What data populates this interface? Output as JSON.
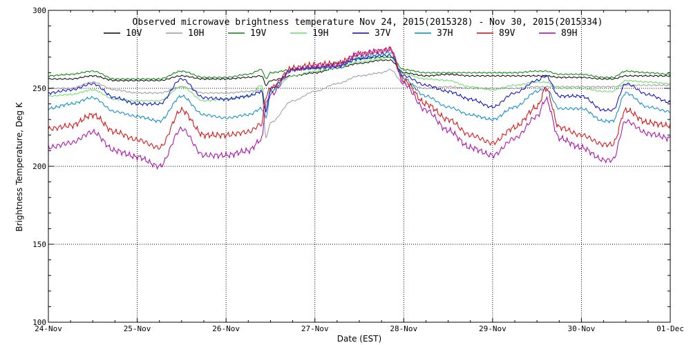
{
  "chart_data": {
    "type": "line",
    "title": "Observed microwave brightness temperature Nov 24, 2015(2015328) - Nov 30, 2015(2015334)",
    "xlabel": "Date (EST)",
    "ylabel": "Brightness Temperature, Deg K",
    "xlim": [
      0,
      7
    ],
    "ylim": [
      100,
      300
    ],
    "grid": true,
    "legend_position": "top",
    "x_ticks": [
      {
        "value": 0,
        "label": "24-Nov"
      },
      {
        "value": 1,
        "label": "25-Nov"
      },
      {
        "value": 2,
        "label": "26-Nov"
      },
      {
        "value": 3,
        "label": "27-Nov"
      },
      {
        "value": 4,
        "label": "28-Nov"
      },
      {
        "value": 5,
        "label": "29-Nov"
      },
      {
        "value": 6,
        "label": "30-Nov"
      },
      {
        "value": 7,
        "label": "01-Dec"
      }
    ],
    "y_ticks": [
      100,
      150,
      200,
      250,
      300
    ],
    "x": [
      0,
      0.25,
      0.5,
      0.75,
      1,
      1.25,
      1.5,
      1.75,
      2,
      2.25,
      2.4,
      2.45,
      2.5,
      2.75,
      3,
      3.25,
      3.5,
      3.75,
      3.85,
      4,
      4.25,
      4.5,
      4.75,
      5,
      5.25,
      5.5,
      5.6,
      5.75,
      6,
      6.25,
      6.35,
      6.5,
      6.75,
      7
    ],
    "series": [
      {
        "name": "10V",
        "color": "#000000",
        "values": [
          256,
          256,
          258,
          255,
          255,
          255,
          258,
          256,
          256,
          257,
          258,
          252,
          255,
          258,
          260,
          263,
          266,
          268,
          268,
          260,
          258,
          259,
          258,
          258,
          258,
          258,
          258,
          257,
          257,
          256,
          256,
          258,
          258,
          258
        ]
      },
      {
        "name": "10H",
        "color": "#999999",
        "values": [
          250,
          250,
          254,
          249,
          247,
          247,
          251,
          247,
          247,
          248,
          249,
          218,
          228,
          242,
          248,
          253,
          258,
          260,
          262,
          253,
          250,
          251,
          250,
          250,
          250,
          251,
          251,
          251,
          251,
          251,
          251,
          252,
          252,
          252
        ]
      },
      {
        "name": "19V",
        "color": "#008000",
        "values": [
          258,
          259,
          261,
          256,
          256,
          256,
          261,
          257,
          257,
          259,
          262,
          256,
          260,
          262,
          263,
          266,
          269,
          270,
          270,
          262,
          260,
          260,
          260,
          260,
          260,
          261,
          261,
          259,
          259,
          257,
          257,
          261,
          260,
          259
        ]
      },
      {
        "name": "19H",
        "color": "#66dd66",
        "values": [
          245,
          246,
          249,
          243,
          242,
          242,
          251,
          242,
          243,
          245,
          252,
          236,
          248,
          258,
          261,
          263,
          267,
          269,
          270,
          259,
          256,
          255,
          251,
          249,
          252,
          254,
          254,
          250,
          250,
          248,
          248,
          255,
          254,
          253
        ]
      },
      {
        "name": "37V",
        "color": "#0000cc",
        "values": [
          247,
          249,
          253,
          244,
          240,
          240,
          256,
          244,
          243,
          245,
          248,
          235,
          250,
          262,
          263,
          264,
          269,
          271,
          271,
          258,
          252,
          248,
          243,
          238,
          247,
          255,
          258,
          245,
          245,
          236,
          236,
          253,
          246,
          241
        ]
      },
      {
        "name": "37H",
        "color": "#0088cc",
        "values": [
          237,
          240,
          244,
          235,
          232,
          229,
          245,
          233,
          231,
          233,
          237,
          231,
          248,
          262,
          263,
          264,
          270,
          272,
          273,
          256,
          245,
          238,
          233,
          230,
          238,
          248,
          250,
          237,
          237,
          229,
          229,
          247,
          238,
          235
        ]
      },
      {
        "name": "89V",
        "color": "#dd0000",
        "values": [
          224,
          226,
          233,
          222,
          217,
          212,
          236,
          220,
          220,
          222,
          227,
          245,
          250,
          263,
          265,
          266,
          272,
          274,
          275,
          255,
          240,
          230,
          220,
          215,
          225,
          238,
          250,
          225,
          220,
          214,
          214,
          236,
          228,
          226
        ]
      },
      {
        "name": "89H",
        "color": "#aa00aa",
        "values": [
          212,
          215,
          222,
          210,
          206,
          200,
          224,
          207,
          207,
          210,
          217,
          240,
          246,
          262,
          264,
          265,
          272,
          274,
          275,
          253,
          236,
          223,
          212,
          207,
          218,
          232,
          243,
          218,
          212,
          204,
          204,
          229,
          221,
          218
        ]
      }
    ]
  }
}
